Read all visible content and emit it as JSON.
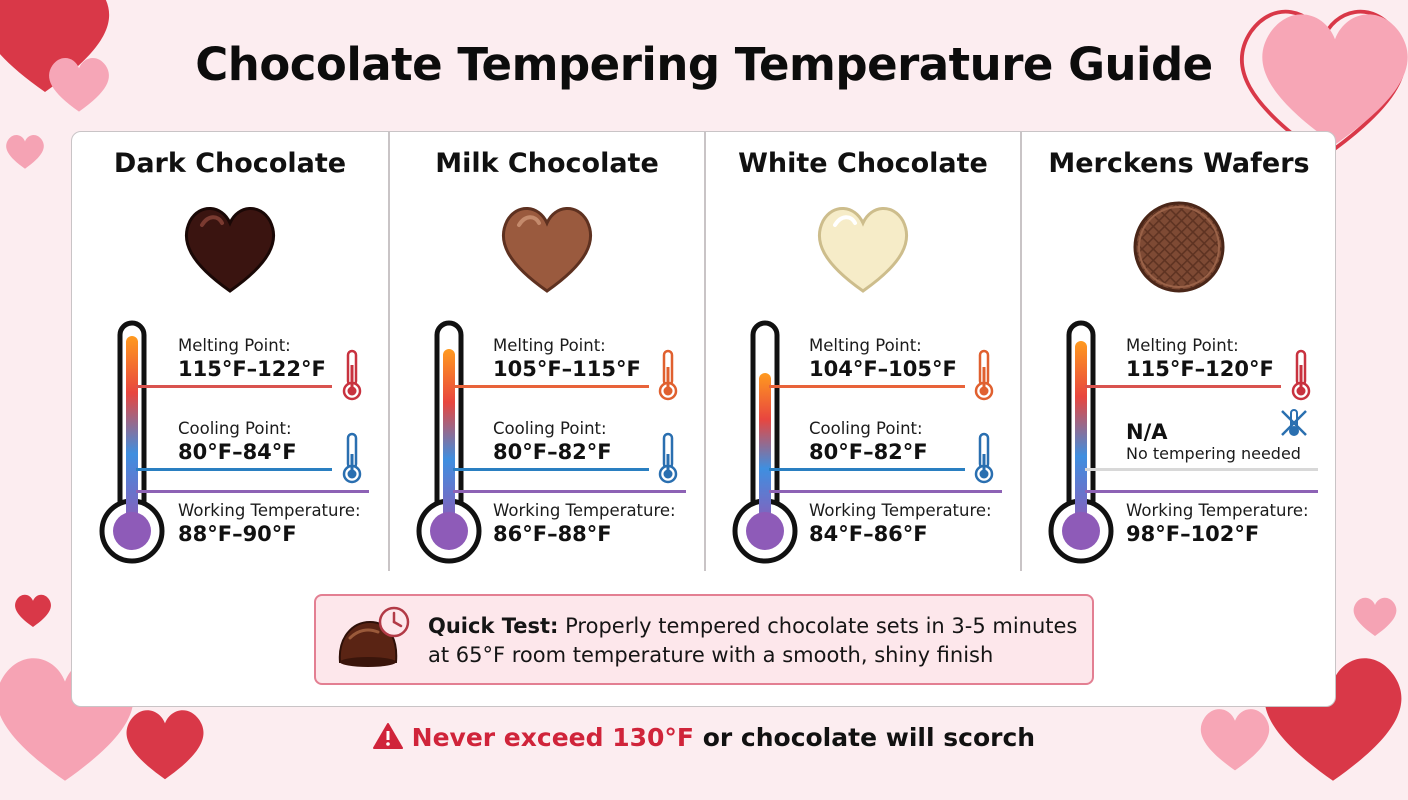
{
  "title": "Chocolate Tempering Temperature Guide",
  "colors": {
    "accent_red": "#d0243a",
    "warm_line": "#d9534f",
    "cool_line": "#2a7fc1",
    "work_line": "#8d62b5"
  },
  "columns": [
    {
      "name": "Dark Chocolate",
      "icon": "dark-chocolate-heart-icon",
      "melting_label": "Melting Point:",
      "melting_value": "115°F–122°F",
      "cooling_label": "Cooling Point:",
      "cooling_value": "80°F–84°F",
      "working_label": "Working Temperature:",
      "working_value": "88°F–90°F"
    },
    {
      "name": "Milk Chocolate",
      "icon": "milk-chocolate-heart-icon",
      "melting_label": "Melting Point:",
      "melting_value": "105°F–115°F",
      "cooling_label": "Cooling Point:",
      "cooling_value": "80°F–82°F",
      "working_label": "Working Temperature:",
      "working_value": "86°F–88°F"
    },
    {
      "name": "White Chocolate",
      "icon": "white-chocolate-heart-icon",
      "melting_label": "Melting Point:",
      "melting_value": "104°F–105°F",
      "cooling_label": "Cooling Point:",
      "cooling_value": "80°F–82°F",
      "working_label": "Working Temperature:",
      "working_value": "84°F–86°F"
    },
    {
      "name": "Merckens Wafers",
      "icon": "wafer-disc-icon",
      "melting_label": "Melting Point:",
      "melting_value": "115°F–120°F",
      "cooling_value": "N/A",
      "cooling_note": "No tempering needed",
      "working_label": "Working Temperature:",
      "working_value": "98°F–102°F"
    }
  ],
  "quick_test": {
    "label": "Quick Test:",
    "text": " Properly tempered chocolate sets in 3-5 minutes at 65°F room temperature with a smooth, shiny finish"
  },
  "warning": {
    "highlight": "Never exceed 130°F",
    "rest": " or chocolate will scorch"
  }
}
